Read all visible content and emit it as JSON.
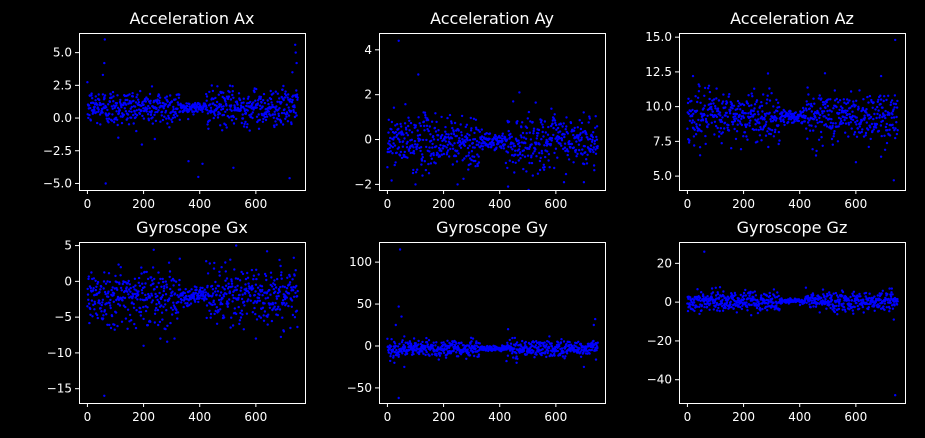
{
  "figure": {
    "background": "#000000",
    "foreground": "#ffffff",
    "marker_color": "#0000ff"
  },
  "chart_data": [
    {
      "type": "scatter",
      "title": "Acceleration Ax",
      "xlim": [
        -30,
        775
      ],
      "ylim": [
        -5.5,
        6.5
      ],
      "xticks": [
        0,
        200,
        400,
        600
      ],
      "yticks": [
        -5.0,
        -2.5,
        0.0,
        2.5,
        5.0
      ],
      "ytick_labels": [
        "−5.0",
        "−2.5",
        "0.0",
        "2.5",
        "5.0"
      ],
      "n_points": 750,
      "center": 0.8,
      "spread": 0.7,
      "quiet_ranges": [
        [
          330,
          420
        ]
      ],
      "outliers": [
        [
          40,
          1.8
        ],
        [
          55,
          3.3
        ],
        [
          60,
          4.2
        ],
        [
          62,
          6.0
        ],
        [
          65,
          -5.0
        ],
        [
          110,
          -1.5
        ],
        [
          240,
          -1.6
        ],
        [
          360,
          -3.3
        ],
        [
          395,
          -4.5
        ],
        [
          410,
          -3.5
        ],
        [
          520,
          -3.8
        ],
        [
          720,
          -4.6
        ],
        [
          740,
          5.6
        ],
        [
          742,
          5.0
        ],
        [
          745,
          4.2
        ],
        [
          730,
          3.5
        ]
      ]
    },
    {
      "type": "scatter",
      "title": "Acceleration Ay",
      "xlim": [
        -30,
        775
      ],
      "ylim": [
        -2.25,
        4.75
      ],
      "xticks": [
        0,
        200,
        400,
        600
      ],
      "yticks": [
        -2,
        0,
        2,
        4
      ],
      "ytick_labels": [
        "−2",
        "0",
        "2",
        "4"
      ],
      "n_points": 750,
      "center": -0.1,
      "spread": 0.6,
      "quiet_ranges": [
        [
          330,
          420
        ]
      ],
      "outliers": [
        [
          40,
          4.4
        ],
        [
          110,
          2.9
        ],
        [
          470,
          2.1
        ],
        [
          100,
          -2.0
        ],
        [
          250,
          -2.0
        ],
        [
          430,
          -2.1
        ],
        [
          700,
          -1.9
        ]
      ]
    },
    {
      "type": "scatter",
      "title": "Acceleration Az",
      "xlim": [
        -30,
        775
      ],
      "ylim": [
        4.0,
        15.3
      ],
      "xticks": [
        0,
        200,
        400,
        600
      ],
      "yticks": [
        5.0,
        7.5,
        10.0,
        12.5,
        15.0
      ],
      "ytick_labels": [
        "5.0",
        "7.5",
        "10.0",
        "12.5",
        "15.0"
      ],
      "n_points": 750,
      "center": 9.3,
      "spread": 0.9,
      "quiet_ranges": [
        [
          330,
          420
        ]
      ],
      "outliers": [
        [
          20,
          12.2
        ],
        [
          40,
          11.6
        ],
        [
          490,
          12.4
        ],
        [
          690,
          12.2
        ],
        [
          45,
          6.5
        ],
        [
          600,
          6.0
        ],
        [
          690,
          6.4
        ],
        [
          735,
          4.7
        ],
        [
          740,
          14.8
        ]
      ]
    },
    {
      "type": "scatter",
      "title": "Gyroscope Gx",
      "xlim": [
        -30,
        775
      ],
      "ylim": [
        -17,
        5.5
      ],
      "xticks": [
        0,
        200,
        400,
        600
      ],
      "yticks": [
        -15,
        -10,
        -5,
        0,
        5
      ],
      "ytick_labels": [
        "−15",
        "−10",
        "−5",
        "0",
        "5"
      ],
      "n_points": 750,
      "center": -2.0,
      "spread": 2.0,
      "quiet_ranges": [
        [
          330,
          420
        ]
      ],
      "outliers": [
        [
          60,
          -16.0
        ],
        [
          200,
          -9.0
        ],
        [
          260,
          -8.0
        ],
        [
          310,
          -8.0
        ],
        [
          600,
          -8.0
        ],
        [
          700,
          -7.0
        ],
        [
          530,
          5.0
        ],
        [
          640,
          4.2
        ]
      ]
    },
    {
      "type": "scatter",
      "title": "Gyroscope Gy",
      "xlim": [
        -30,
        775
      ],
      "ylim": [
        -68,
        124
      ],
      "xticks": [
        0,
        200,
        400,
        600
      ],
      "yticks": [
        -50,
        0,
        50,
        100
      ],
      "ytick_labels": [
        "−50",
        "0",
        "50",
        "100"
      ],
      "n_points": 750,
      "center": -3.0,
      "spread": 5.0,
      "quiet_ranges": [
        [
          330,
          420
        ]
      ],
      "outliers": [
        [
          45,
          115.0
        ],
        [
          40,
          47.0
        ],
        [
          50,
          35.0
        ],
        [
          30,
          25.0
        ],
        [
          25,
          -20.0
        ],
        [
          40,
          -62.0
        ],
        [
          60,
          -25.0
        ],
        [
          740,
          32.0
        ],
        [
          735,
          25.0
        ],
        [
          430,
          20.0
        ],
        [
          460,
          -20.0
        ],
        [
          700,
          -25.0
        ]
      ]
    },
    {
      "type": "scatter",
      "title": "Gyroscope Gz",
      "xlim": [
        -30,
        775
      ],
      "ylim": [
        -52,
        31
      ],
      "xticks": [
        0,
        200,
        400,
        600
      ],
      "yticks": [
        -40,
        -20,
        0,
        20
      ],
      "ytick_labels": [
        "−40",
        "−20",
        "0",
        "20"
      ],
      "n_points": 750,
      "center": 0.5,
      "spread": 2.5,
      "quiet_ranges": [
        [
          330,
          420
        ]
      ],
      "outliers": [
        [
          60,
          26.0
        ],
        [
          740,
          -48.0
        ],
        [
          735,
          -9.0
        ],
        [
          720,
          7.0
        ]
      ]
    }
  ]
}
